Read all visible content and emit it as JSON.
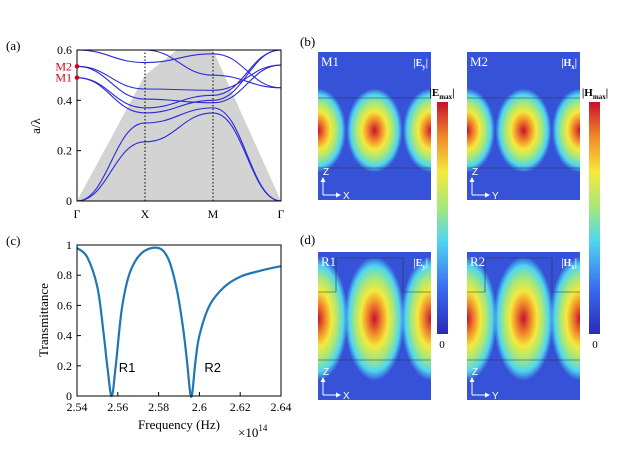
{
  "panel_labels": {
    "a": "(a)",
    "b": "(b)",
    "c": "(c)",
    "d": "(d)"
  },
  "chart_data": [
    {
      "type": "line",
      "panel": "(a)",
      "ylabel": "a/λ",
      "xlabel": "",
      "x_ticks": [
        "Γ",
        "X",
        "M",
        "Γ"
      ],
      "ylim": [
        0,
        0.6
      ],
      "y_ticks": [
        "0",
        "0.2",
        "0.4",
        "0.6"
      ],
      "mode_labels": [
        {
          "label": "M2",
          "value": 0.535,
          "color": "#d0021b"
        },
        {
          "label": "M1",
          "value": 0.49,
          "color": "#d0021b"
        }
      ],
      "light_cone": {
        "color": "#d3d3d3",
        "x": [
          0,
          1,
          1.47,
          2,
          3
        ],
        "y": [
          0,
          0.5,
          0.6,
          0.6,
          0
        ]
      },
      "band_color": "#2a2ad8",
      "series": [
        {
          "x": [
            0,
            1,
            2,
            3
          ],
          "y": [
            0,
            0.235,
            0.35,
            0
          ]
        },
        {
          "x": [
            0,
            1,
            2,
            3
          ],
          "y": [
            0,
            0.31,
            0.37,
            0
          ]
        },
        {
          "x": [
            0,
            1,
            2,
            3
          ],
          "y": [
            0.49,
            0.35,
            0.4,
            0.6
          ]
        },
        {
          "x": [
            0,
            1,
            2,
            3
          ],
          "y": [
            0.49,
            0.37,
            0.42,
            0.6
          ]
        },
        {
          "x": [
            0,
            1,
            2,
            3
          ],
          "y": [
            0.535,
            0.405,
            0.39,
            0.54
          ]
        },
        {
          "x": [
            0,
            1,
            2,
            3
          ],
          "y": [
            0.535,
            0.445,
            0.44,
            0.54
          ]
        },
        {
          "x": [
            0,
            1,
            2,
            3
          ],
          "y": [
            0.6,
            0.55,
            0.585,
            0.45
          ]
        },
        {
          "x": [
            0,
            1,
            2,
            3
          ],
          "y": [
            0.6,
            0.6,
            0.5,
            0.45
          ]
        }
      ]
    },
    {
      "type": "line",
      "panel": "(c)",
      "xlabel": "Frequency (Hz)",
      "ylabel": "Transmittance",
      "x_multiplier": "×10",
      "x_multiplier_exp": "14",
      "xlim": [
        2.54,
        2.64
      ],
      "ylim": [
        0,
        1
      ],
      "x_ticks": [
        "2.54",
        "2.56",
        "2.58",
        "2.6",
        "2.62",
        "2.64"
      ],
      "y_ticks": [
        "0",
        "0.2",
        "0.4",
        "0.6",
        "0.8",
        "1"
      ],
      "line_color": "#1f77b4",
      "annotations": [
        {
          "text": "R1",
          "x": 2.5575,
          "y": 0.16
        },
        {
          "text": "R2",
          "x": 2.5995,
          "y": 0.16
        }
      ],
      "x": [
        2.54,
        2.545,
        2.55,
        2.553,
        2.555,
        2.557,
        2.559,
        2.562,
        2.566,
        2.572,
        2.58,
        2.585,
        2.589,
        2.592,
        2.594,
        2.5955,
        2.5965,
        2.598,
        2.6,
        2.605,
        2.612,
        2.62,
        2.63,
        2.64
      ],
      "y": [
        0.98,
        0.92,
        0.72,
        0.42,
        0.18,
        0.0,
        0.2,
        0.58,
        0.82,
        0.95,
        0.98,
        0.9,
        0.7,
        0.45,
        0.22,
        0.02,
        0.02,
        0.22,
        0.4,
        0.6,
        0.72,
        0.79,
        0.83,
        0.86
      ]
    }
  ],
  "field_maps": [
    {
      "label": "M1",
      "component": "E",
      "sub": "y",
      "axes": [
        "Z",
        "X"
      ]
    },
    {
      "label": "M2",
      "component": "H",
      "sub": "x",
      "axes": [
        "Z",
        "Y"
      ]
    },
    {
      "label": "R1",
      "component": "E",
      "sub": "y",
      "axes": [
        "Z",
        "X"
      ]
    },
    {
      "label": "R2",
      "component": "H",
      "sub": "x",
      "axes": [
        "Z",
        "Y"
      ]
    }
  ],
  "colorbars": [
    {
      "symbol": "E",
      "sub": "max",
      "min_label": "0"
    },
    {
      "symbol": "H",
      "sub": "max",
      "min_label": "0"
    }
  ]
}
